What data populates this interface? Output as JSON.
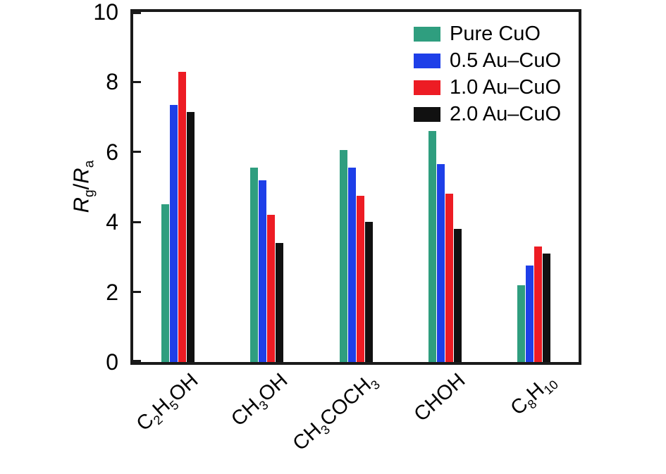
{
  "chart_data": {
    "type": "bar",
    "categories": [
      "C_2H_5OH",
      "CH_3OH",
      "CH_3COCH_3",
      "CHOH",
      "C_8H_{10}"
    ],
    "series": [
      {
        "name": "Pure CuO",
        "color": "#2f9e7f",
        "values": [
          4.5,
          5.55,
          6.05,
          6.6,
          2.2
        ]
      },
      {
        "name": "0.5 Au–CuO",
        "color": "#1e3fe8",
        "values": [
          7.35,
          5.2,
          5.55,
          5.65,
          2.75
        ]
      },
      {
        "name": "1.0 Au–CuO",
        "color": "#ed1c24",
        "values": [
          8.3,
          4.2,
          4.75,
          4.8,
          3.3
        ]
      },
      {
        "name": "2.0 Au–CuO",
        "color": "#111111",
        "values": [
          7.15,
          3.4,
          4.0,
          3.8,
          3.1
        ]
      }
    ],
    "title": "",
    "xlabel": "",
    "ylabel": "*R*_g/*R*_a",
    "ylim": [
      0,
      10
    ],
    "yticks": [
      0,
      2,
      4,
      6,
      8,
      10
    ],
    "grid": false,
    "legend_position": "top-right"
  },
  "colors": {
    "axis": "#1a1a1a",
    "background": "#ffffff",
    "text": "#000000"
  }
}
